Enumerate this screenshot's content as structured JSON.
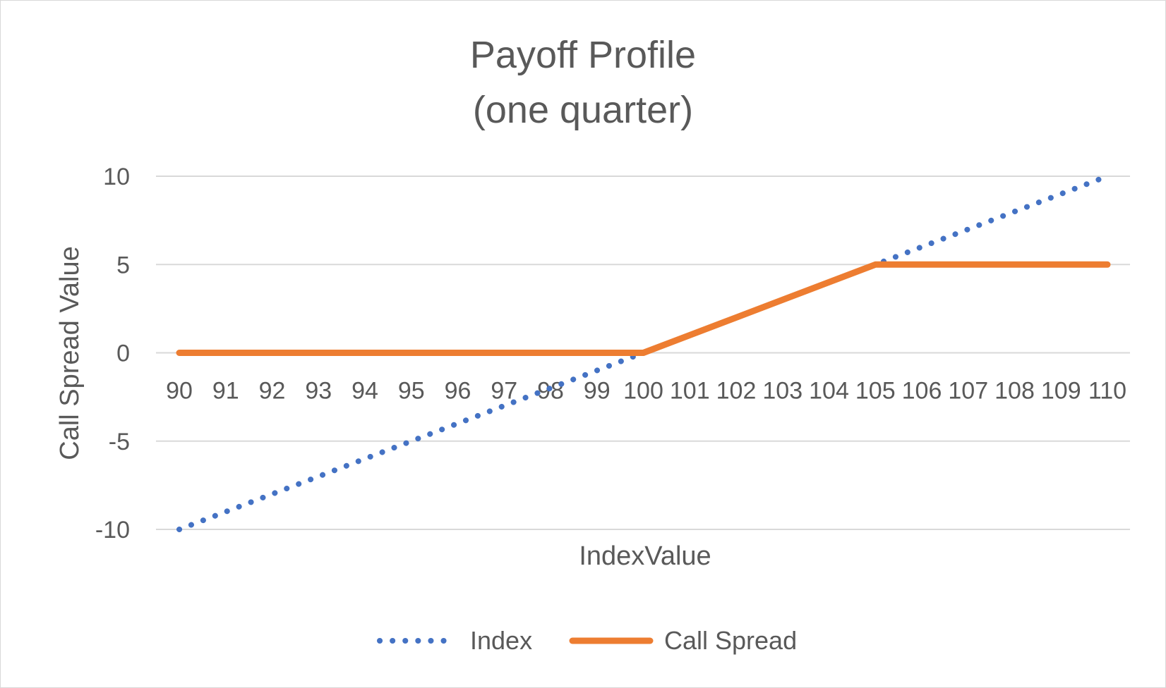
{
  "chart_data": {
    "type": "line",
    "title": "Payoff Profile",
    "subtitle": "(one quarter)",
    "xlabel": "IndexValue",
    "ylabel": "Call Spread Value",
    "categories": [
      "90",
      "91",
      "92",
      "93",
      "94",
      "95",
      "96",
      "97",
      "98",
      "99",
      "100",
      "101",
      "102",
      "103",
      "104",
      "105",
      "106",
      "107",
      "108",
      "109",
      "110"
    ],
    "yticks": [
      "10",
      "5",
      "0",
      "-5",
      "-10"
    ],
    "ylim": [
      -10,
      10
    ],
    "grid": true,
    "legend_position": "bottom",
    "series": [
      {
        "name": "Index",
        "style": "dotted",
        "color": "#4472C4",
        "values": [
          -10,
          -9,
          -8,
          -7,
          -6,
          -5,
          -4,
          -3,
          -2,
          -1,
          0,
          1,
          2,
          3,
          4,
          5,
          6,
          7,
          8,
          9,
          10
        ]
      },
      {
        "name": "Call Spread",
        "style": "solid",
        "color": "#ED7D31",
        "values": [
          0,
          0,
          0,
          0,
          0,
          0,
          0,
          0,
          0,
          0,
          0,
          1,
          2,
          3,
          4,
          5,
          5,
          5,
          5,
          5,
          5
        ]
      }
    ]
  }
}
